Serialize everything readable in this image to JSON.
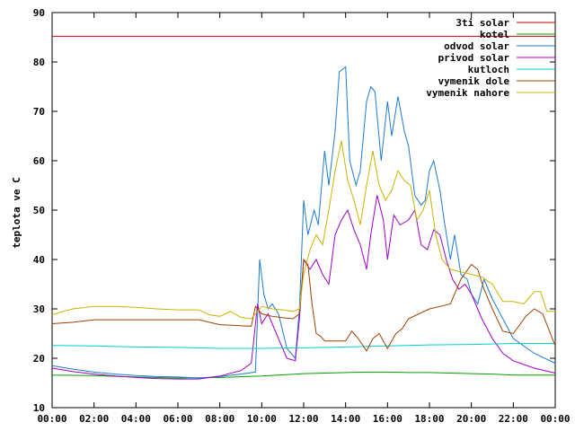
{
  "chart_data": {
    "type": "line",
    "title": "",
    "xlabel": "",
    "ylabel": "teplota ve C",
    "xlim": [
      0,
      24
    ],
    "ylim": [
      10,
      90
    ],
    "x_ticks": [
      {
        "value": 0,
        "label": "00:00"
      },
      {
        "value": 2,
        "label": "02:00"
      },
      {
        "value": 4,
        "label": "04:00"
      },
      {
        "value": 6,
        "label": "06:00"
      },
      {
        "value": 8,
        "label": "08:00"
      },
      {
        "value": 10,
        "label": "10:00"
      },
      {
        "value": 12,
        "label": "12:00"
      },
      {
        "value": 14,
        "label": "14:00"
      },
      {
        "value": 16,
        "label": "16:00"
      },
      {
        "value": 18,
        "label": "18:00"
      },
      {
        "value": 20,
        "label": "20:00"
      },
      {
        "value": 22,
        "label": "22:00"
      },
      {
        "value": 24,
        "label": "00:00"
      }
    ],
    "y_ticks": [
      10,
      20,
      30,
      40,
      50,
      60,
      70,
      80,
      90
    ],
    "grid": false,
    "legend_position": "top-right",
    "series": [
      {
        "name": "3ti solar",
        "color": "#cc0000",
        "x": [
          0,
          24
        ],
        "y": [
          85.2,
          85.2
        ]
      },
      {
        "name": "kotel",
        "color": "#00a000",
        "x": [
          0,
          2,
          4,
          6,
          8,
          10,
          12,
          14,
          15,
          16,
          17,
          18,
          19,
          20,
          21,
          22,
          23,
          24
        ],
        "y": [
          16.6,
          16.5,
          16.2,
          16.0,
          16.1,
          16.4,
          16.9,
          17.1,
          17.2,
          17.2,
          17.1,
          17.1,
          17.0,
          16.9,
          16.8,
          16.6,
          16.6,
          16.6
        ]
      },
      {
        "name": "odvod solar",
        "color": "#1e7bd1",
        "x": [
          0,
          1,
          2,
          3,
          4,
          5,
          6,
          7,
          8,
          9,
          9.7,
          9.9,
          10.1,
          10.3,
          10.5,
          10.8,
          11.2,
          11.6,
          11.8,
          12.0,
          12.2,
          12.5,
          12.7,
          13.0,
          13.2,
          13.5,
          13.7,
          14.0,
          14.2,
          14.5,
          14.7,
          15.0,
          15.2,
          15.4,
          15.7,
          16.0,
          16.2,
          16.5,
          16.8,
          17.0,
          17.3,
          17.6,
          17.8,
          18.0,
          18.2,
          18.5,
          18.7,
          19.0,
          19.2,
          19.5,
          19.8,
          20.0,
          20.3,
          20.6,
          21.0,
          21.5,
          22.0,
          23.0,
          24.0
        ],
        "y": [
          18.5,
          17.8,
          17.2,
          16.8,
          16.5,
          16.3,
          16.2,
          16.0,
          16.3,
          16.8,
          17.2,
          40.0,
          33.0,
          30.0,
          31.0,
          29.0,
          22.0,
          20.0,
          30.0,
          52.0,
          45.0,
          50.0,
          47.0,
          62.0,
          55.0,
          66.0,
          78.0,
          79.0,
          60.0,
          55.0,
          58.0,
          72.0,
          75.0,
          74.0,
          60.0,
          72.0,
          65.0,
          73.0,
          66.0,
          63.0,
          53.0,
          51.0,
          52.0,
          58.0,
          60.0,
          54.0,
          48.0,
          40.0,
          45.0,
          37.0,
          36.0,
          33.0,
          31.0,
          36.0,
          32.0,
          28.0,
          24.0,
          21.0,
          19.0
        ]
      },
      {
        "name": "privod solar",
        "color": "#a000c8",
        "x": [
          0,
          1,
          2,
          3,
          4,
          5,
          6,
          7,
          8,
          9,
          9.5,
          9.8,
          10.0,
          10.3,
          10.6,
          10.9,
          11.2,
          11.6,
          11.8,
          12.0,
          12.3,
          12.6,
          12.9,
          13.2,
          13.5,
          13.8,
          14.1,
          14.4,
          14.7,
          15.0,
          15.2,
          15.5,
          15.8,
          16.0,
          16.3,
          16.6,
          17.0,
          17.3,
          17.6,
          17.9,
          18.2,
          18.5,
          18.8,
          19.1,
          19.4,
          19.7,
          20.0,
          20.5,
          21.0,
          21.5,
          22.0,
          23.0,
          24.0
        ],
        "y": [
          18.0,
          17.3,
          16.8,
          16.4,
          16.1,
          15.9,
          15.8,
          15.8,
          16.4,
          17.5,
          19.0,
          31.0,
          27.0,
          29.0,
          26.0,
          23.0,
          20.0,
          19.5,
          28.0,
          40.0,
          38.0,
          40.0,
          37.0,
          35.0,
          45.0,
          48.0,
          50.0,
          46.0,
          43.0,
          38.0,
          45.0,
          53.0,
          48.0,
          40.0,
          49.0,
          47.0,
          48.0,
          50.0,
          43.0,
          42.0,
          46.0,
          45.0,
          40.0,
          36.0,
          34.0,
          35.0,
          33.0,
          28.0,
          24.0,
          21.0,
          19.5,
          18.0,
          17.0
        ]
      },
      {
        "name": "kutloch",
        "color": "#00d0d0",
        "x": [
          0,
          2,
          4,
          6,
          8,
          10,
          12,
          14,
          16,
          18,
          20,
          22,
          24
        ],
        "y": [
          22.6,
          22.5,
          22.3,
          22.2,
          22.0,
          22.0,
          22.1,
          22.3,
          22.5,
          22.7,
          22.8,
          23.0,
          23.0
        ]
      },
      {
        "name": "vymenik dole",
        "color": "#a04000",
        "x": [
          0,
          1,
          2,
          3,
          4,
          5,
          6,
          7,
          8,
          9,
          9.5,
          9.7,
          10.0,
          10.5,
          11.0,
          11.5,
          11.8,
          12.0,
          12.2,
          12.4,
          12.6,
          12.8,
          13.0,
          13.5,
          14.0,
          14.3,
          14.6,
          15.0,
          15.3,
          15.6,
          16.0,
          16.4,
          16.7,
          17.0,
          17.5,
          18.0,
          18.5,
          19.0,
          19.5,
          20.0,
          20.3,
          20.6,
          21.0,
          21.5,
          22.0,
          22.6,
          23.0,
          23.4,
          24.0
        ],
        "y": [
          27.0,
          27.3,
          27.8,
          27.8,
          27.8,
          27.8,
          27.8,
          27.8,
          26.8,
          26.6,
          26.5,
          30.5,
          29.0,
          28.5,
          28.2,
          28.0,
          29.0,
          40.0,
          39.0,
          31.0,
          25.0,
          24.5,
          23.5,
          23.5,
          23.5,
          25.5,
          24.0,
          21.5,
          24.0,
          25.0,
          22.0,
          25.0,
          26.0,
          28.0,
          29.0,
          30.0,
          30.5,
          31.0,
          36.0,
          39.0,
          38.0,
          34.0,
          30.0,
          25.5,
          25.0,
          28.5,
          30.0,
          29.0,
          22.5
        ]
      },
      {
        "name": "vymenik nahore",
        "color": "#c8b400",
        "x": [
          0,
          0.5,
          1,
          2,
          3,
          4,
          5,
          6,
          7,
          7.5,
          8,
          8.5,
          9,
          9.5,
          10.0,
          10.5,
          11.0,
          11.5,
          11.8,
          12.0,
          12.3,
          12.6,
          12.9,
          13.2,
          13.5,
          13.8,
          14.1,
          14.4,
          14.7,
          15.0,
          15.3,
          15.6,
          15.9,
          16.2,
          16.5,
          16.8,
          17.1,
          17.4,
          17.7,
          18.0,
          18.3,
          18.6,
          19.0,
          19.5,
          20.0,
          20.5,
          21.0,
          21.5,
          22.0,
          22.5,
          23.0,
          23.3,
          23.6,
          24.0
        ],
        "y": [
          28.8,
          29.5,
          30.0,
          30.5,
          30.5,
          30.3,
          30.0,
          29.8,
          29.8,
          28.8,
          28.5,
          29.5,
          28.3,
          28.0,
          30.5,
          30.0,
          29.8,
          29.5,
          30.0,
          37.0,
          42.0,
          45.0,
          43.0,
          50.0,
          58.0,
          64.0,
          56.0,
          52.0,
          47.0,
          55.0,
          62.0,
          55.0,
          52.0,
          54.0,
          58.0,
          56.0,
          55.0,
          48.0,
          50.0,
          54.0,
          45.0,
          40.0,
          38.0,
          37.5,
          37.0,
          36.5,
          35.0,
          31.5,
          31.5,
          31.0,
          33.5,
          33.5,
          29.5,
          29.5
        ]
      }
    ]
  }
}
